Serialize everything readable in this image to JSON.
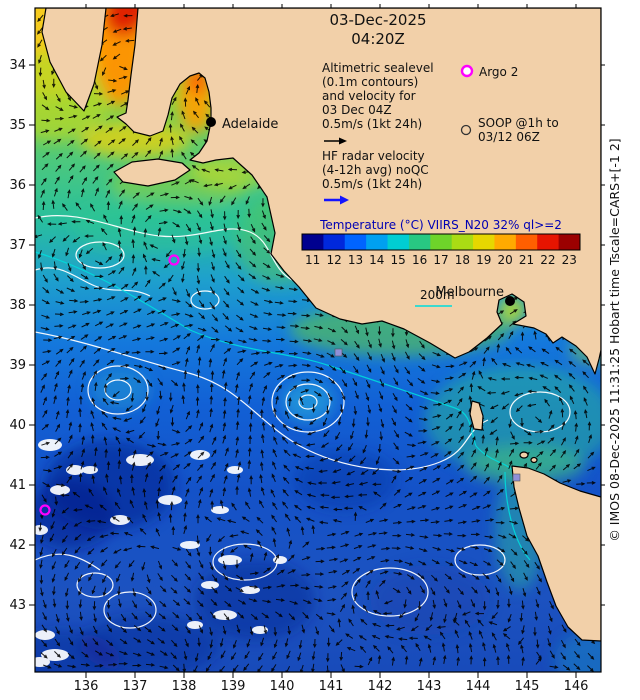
{
  "title": {
    "date": "03-Dec-2025",
    "time": "04:20Z"
  },
  "legend": {
    "altimetric_lines": [
      "Altimetric sealevel",
      "(0.1m contours)",
      "and velocity for",
      "03 Dec 04Z",
      "0.5m/s (1kt 24h)"
    ],
    "hf_lines": [
      "HF radar velocity",
      "(4-12h avg) noQC",
      "0.5m/s (1kt 24h)"
    ],
    "argo_label": "Argo 2",
    "soop_lines": [
      "SOOP @1h to",
      "03/12 06Z"
    ],
    "depth_label": "200m"
  },
  "colorbar": {
    "title": "Temperature (°C) VIIRS_N20 32% ql>=2",
    "ticks": [
      11,
      12,
      13,
      14,
      15,
      16,
      17,
      18,
      19,
      20,
      21,
      22,
      23
    ],
    "colors": [
      "#00008f",
      "#0028dc",
      "#0064ff",
      "#00a0f0",
      "#00cdd2",
      "#28c882",
      "#6ed42a",
      "#aadc14",
      "#e6d700",
      "#ffaa00",
      "#ff5f00",
      "#e61400",
      "#9b0000"
    ]
  },
  "cities": [
    "Adelaide",
    "Melbourne"
  ],
  "axes": {
    "x_ticks": [
      136,
      137,
      138,
      139,
      140,
      141,
      142,
      143,
      144,
      145,
      146
    ],
    "y_ticks": [
      34,
      35,
      36,
      37,
      38,
      39,
      40,
      41,
      42,
      43
    ]
  },
  "watermark": "© IMOS 08-Dec-2025 11:31:25 Hobart time Tscale=CARS+[-1 2]",
  "style_colors": {
    "land": "#f2d0a9",
    "coastline": "#000000",
    "vector": "#000000",
    "contour": "#ffffff",
    "isobath": "#00dcdc",
    "argo": "#ff00ff",
    "soop_square": "#9090d8",
    "hf_arrow": "#1414ff",
    "altimetric_arrow": "#000000",
    "colorbar_title": "#0000b4"
  }
}
